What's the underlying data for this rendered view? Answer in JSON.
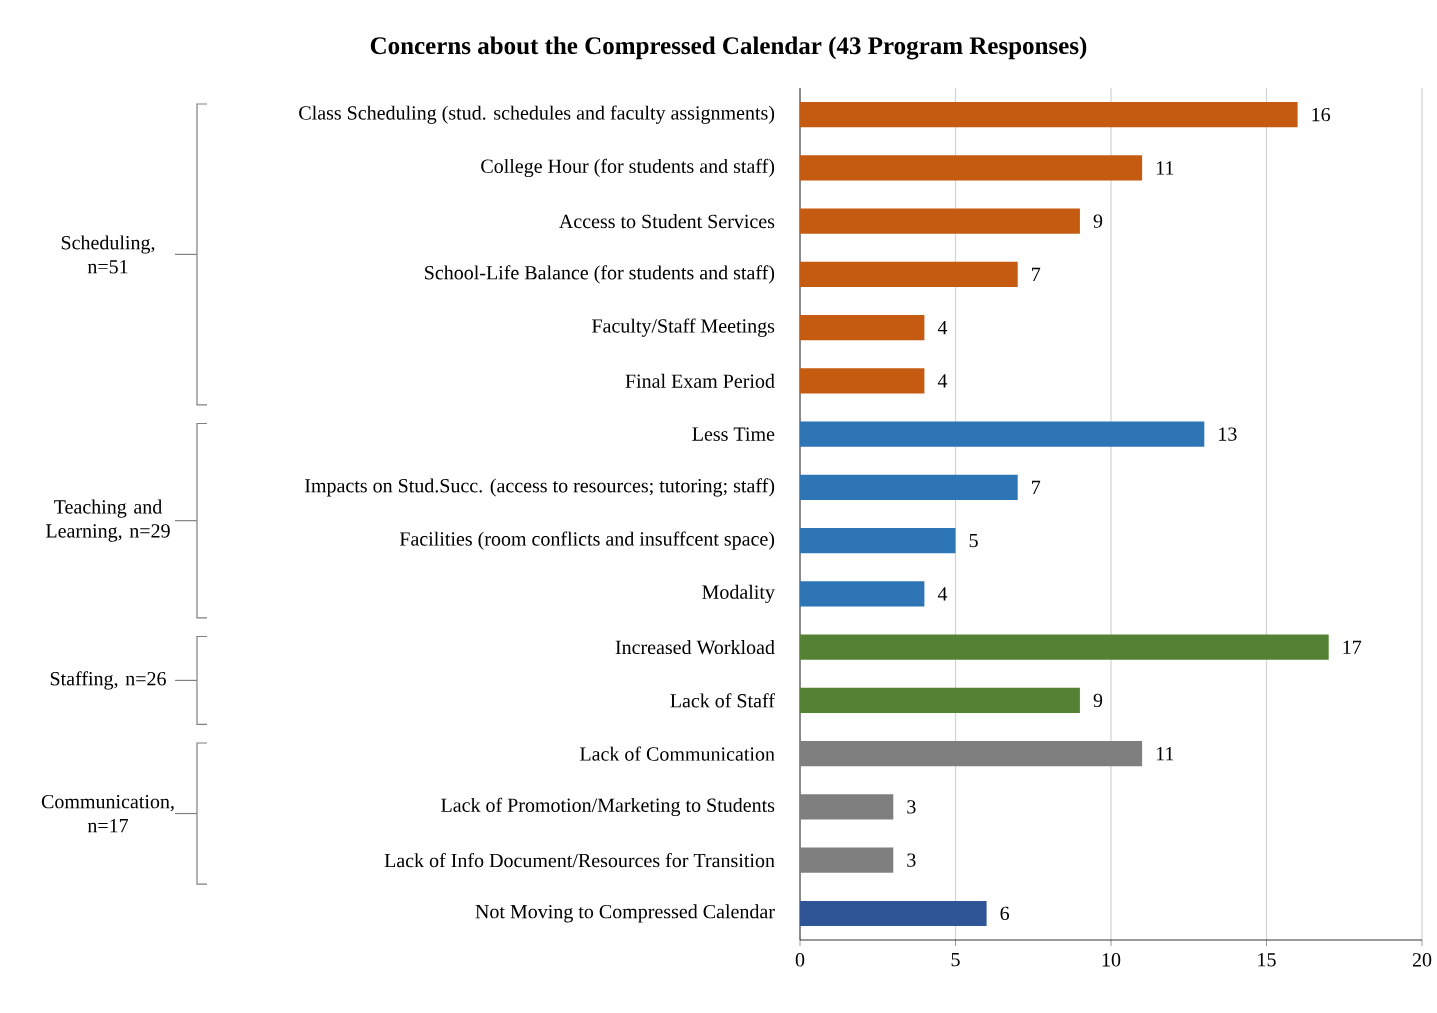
{
  "chart_data": {
    "type": "bar",
    "orientation": "horizontal",
    "title": "**Concerns about the Compressed Calendar (43 Program Responses)**",
    "categories": [
      "Class Scheduling (stud. schedules and faculty assignments)",
      "College Hour (for students and staff)",
      "Access to Student Services",
      "School-Life Balance (for students and staff)",
      "Faculty/Staff Meetings",
      "Final Exam Period",
      "Less Time",
      "Impacts on Stud.Succ. (access to resources; tutoring; staff)",
      "Facilities (room conflicts and insuffcent space)",
      "Modality",
      "Increased Workload",
      "Lack of Staff",
      "Lack of Communication",
      "Lack of Promotion/Marketing to Students",
      "Lack of Info Document/Resources for Transition",
      "Not Moving to Compressed Calendar"
    ],
    "values": [
      16,
      11,
      9,
      7,
      4,
      4,
      13,
      7,
      5,
      4,
      17,
      9,
      11,
      3,
      3,
      6
    ],
    "colors": [
      "#c55a11",
      "#c55a11",
      "#c55a11",
      "#c55a11",
      "#c55a11",
      "#c55a11",
      "#2e75b6",
      "#2e75b6",
      "#2e75b6",
      "#2e75b6",
      "#548235",
      "#548235",
      "#7f7f7f",
      "#7f7f7f",
      "#7f7f7f",
      "#2f5597"
    ],
    "xlim": [
      0,
      20
    ],
    "xticks": [
      0,
      5,
      10,
      15,
      20
    ],
    "grid": "x",
    "data_labels": true,
    "annotations": [
      "Scheduling, n=51",
      "Teaching and Learning, n=29",
      "Staffing, n=26",
      "Communication, n=17"
    ]
  }
}
